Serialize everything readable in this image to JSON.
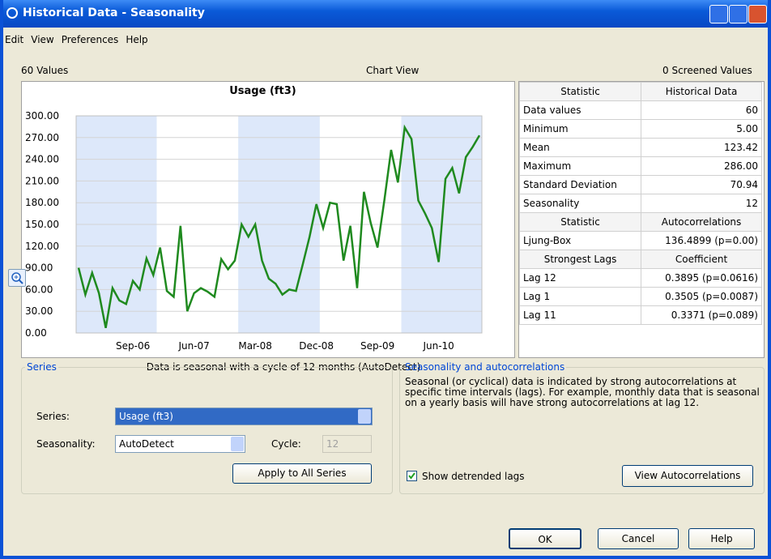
{
  "window": {
    "title": "Historical Data - Seasonality"
  },
  "menu": [
    "Edit",
    "View",
    "Preferences",
    "Help"
  ],
  "header": {
    "left": "60 Values",
    "center": "Chart View",
    "right": "0 Screened Values"
  },
  "chart_data": {
    "type": "line",
    "title": "Usage (ft3)",
    "categories": [
      null,
      null,
      null,
      null,
      null,
      null,
      null,
      null,
      "Sep-06",
      null,
      null,
      null,
      null,
      null,
      null,
      null,
      null,
      "Jun-07",
      null,
      null,
      null,
      null,
      null,
      null,
      null,
      null,
      "Mar-08",
      null,
      null,
      null,
      null,
      null,
      null,
      null,
      null,
      "Dec-08",
      null,
      null,
      null,
      null,
      null,
      null,
      null,
      null,
      "Sep-09",
      null,
      null,
      null,
      null,
      null,
      null,
      null,
      null,
      "Jun-10",
      null,
      null,
      null,
      null,
      null,
      null
    ],
    "values": [
      90,
      53,
      83,
      55,
      7,
      62,
      45,
      40,
      72,
      60,
      103,
      80,
      118,
      58,
      50,
      148,
      30,
      55,
      62,
      57,
      50,
      102,
      88,
      100,
      150,
      133,
      150,
      100,
      75,
      68,
      53,
      60,
      58,
      95,
      133,
      178,
      145,
      180,
      178,
      100,
      148,
      62,
      195,
      152,
      118,
      183,
      253,
      208,
      284,
      268,
      183,
      165,
      145,
      98,
      213,
      228,
      193,
      243,
      257,
      273
    ],
    "color": "#1f8a1f",
    "ylim": [
      0,
      300
    ],
    "yticks": [
      {
        "value": 0,
        "label": "0.00"
      },
      {
        "value": 30,
        "label": "30.00"
      },
      {
        "value": 60,
        "label": "60.00"
      },
      {
        "value": 90,
        "label": "90.00"
      },
      {
        "value": 120,
        "label": "120.00"
      },
      {
        "value": 150,
        "label": "150.00"
      },
      {
        "value": 180,
        "label": "180.00"
      },
      {
        "value": 210,
        "label": "210.00"
      },
      {
        "value": 240,
        "label": "240.00"
      },
      {
        "value": 270,
        "label": "270.00"
      },
      {
        "value": 300,
        "label": "300.00"
      }
    ],
    "grid": true,
    "caption": "Data is seasonal with a cycle of 12 months (AutoDetect)"
  },
  "stats": {
    "rows": [
      [
        "Statistic",
        "Historical Data"
      ],
      [
        "Data values",
        "60"
      ],
      [
        "Minimum",
        "5.00"
      ],
      [
        "Mean",
        "123.42"
      ],
      [
        "Maximum",
        "286.00"
      ],
      [
        "Standard Deviation",
        "70.94"
      ],
      [
        "Seasonality",
        "12"
      ],
      [
        "Statistic",
        "Autocorrelations"
      ],
      [
        "Ljung-Box",
        "136.4899 (p=0.00)"
      ],
      [
        "Strongest Lags",
        "Coefficient"
      ],
      [
        "Lag 12",
        "0.3895 (p=0.0616)"
      ],
      [
        "Lag 1",
        "0.3505 (p=0.0087)"
      ],
      [
        "Lag 11",
        "0.3371 (p=0.089)"
      ]
    ],
    "header_rows": [
      0,
      7,
      9
    ]
  },
  "series_panel": {
    "legend": "Series",
    "series_label": "Series:",
    "series_value": "Usage (ft3)",
    "seasonality_label": "Seasonality:",
    "seasonality_value": "AutoDetect",
    "cycle_label": "Cycle:",
    "cycle_value": "12",
    "apply_button": "Apply to All Series"
  },
  "auto_panel": {
    "legend": "Seasonality and autocorrelations",
    "text": "Seasonal (or cyclical) data is indicated by strong autocorrelations at specific time intervals (lags).  For example, monthly data that is seasonal on a yearly basis will have strong autocorrelations at lag 12.",
    "checkbox": "Show detrended lags",
    "button": "View Autocorrelations"
  },
  "buttons": [
    "OK",
    "Cancel",
    "Help"
  ]
}
